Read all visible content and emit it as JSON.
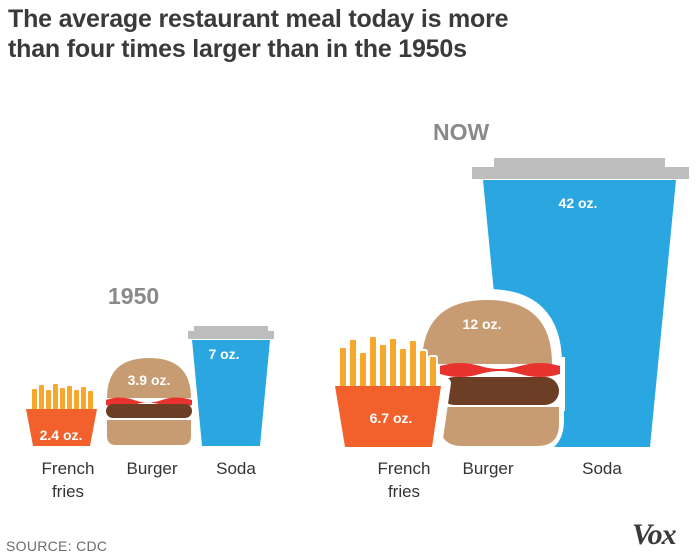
{
  "title_line1": "The average restaurant meal today is more",
  "title_line2": "than four times larger than in the 1950s",
  "source": "SOURCE: CDC",
  "logo": "Vox",
  "colors": {
    "fries": "#f2602c",
    "fries_sticks": "#f7a72b",
    "bun": "#c89c72",
    "patty": "#6b3e25",
    "ketchup": "#e8322e",
    "soda": "#2aa7e1",
    "lid": "#bdbdbd",
    "group_label": "#8a8a8a"
  },
  "chart_data": {
    "type": "bar",
    "title": "The average restaurant meal today is more than four times larger than in the 1950s",
    "unit": "oz.",
    "categories": [
      "French fries",
      "Burger",
      "Soda"
    ],
    "series": [
      {
        "name": "1950",
        "values": [
          2.4,
          3.9,
          7
        ],
        "labels": [
          "2.4 oz.",
          "3.9 oz.",
          "7 oz."
        ]
      },
      {
        "name": "NOW",
        "values": [
          6.7,
          12,
          42
        ],
        "labels": [
          "6.7 oz.",
          "12 oz.",
          "42 oz."
        ]
      }
    ],
    "category_labels": {
      "fries_line1": "French",
      "fries_line2": "fries",
      "burger": "Burger",
      "soda": "Soda"
    }
  }
}
